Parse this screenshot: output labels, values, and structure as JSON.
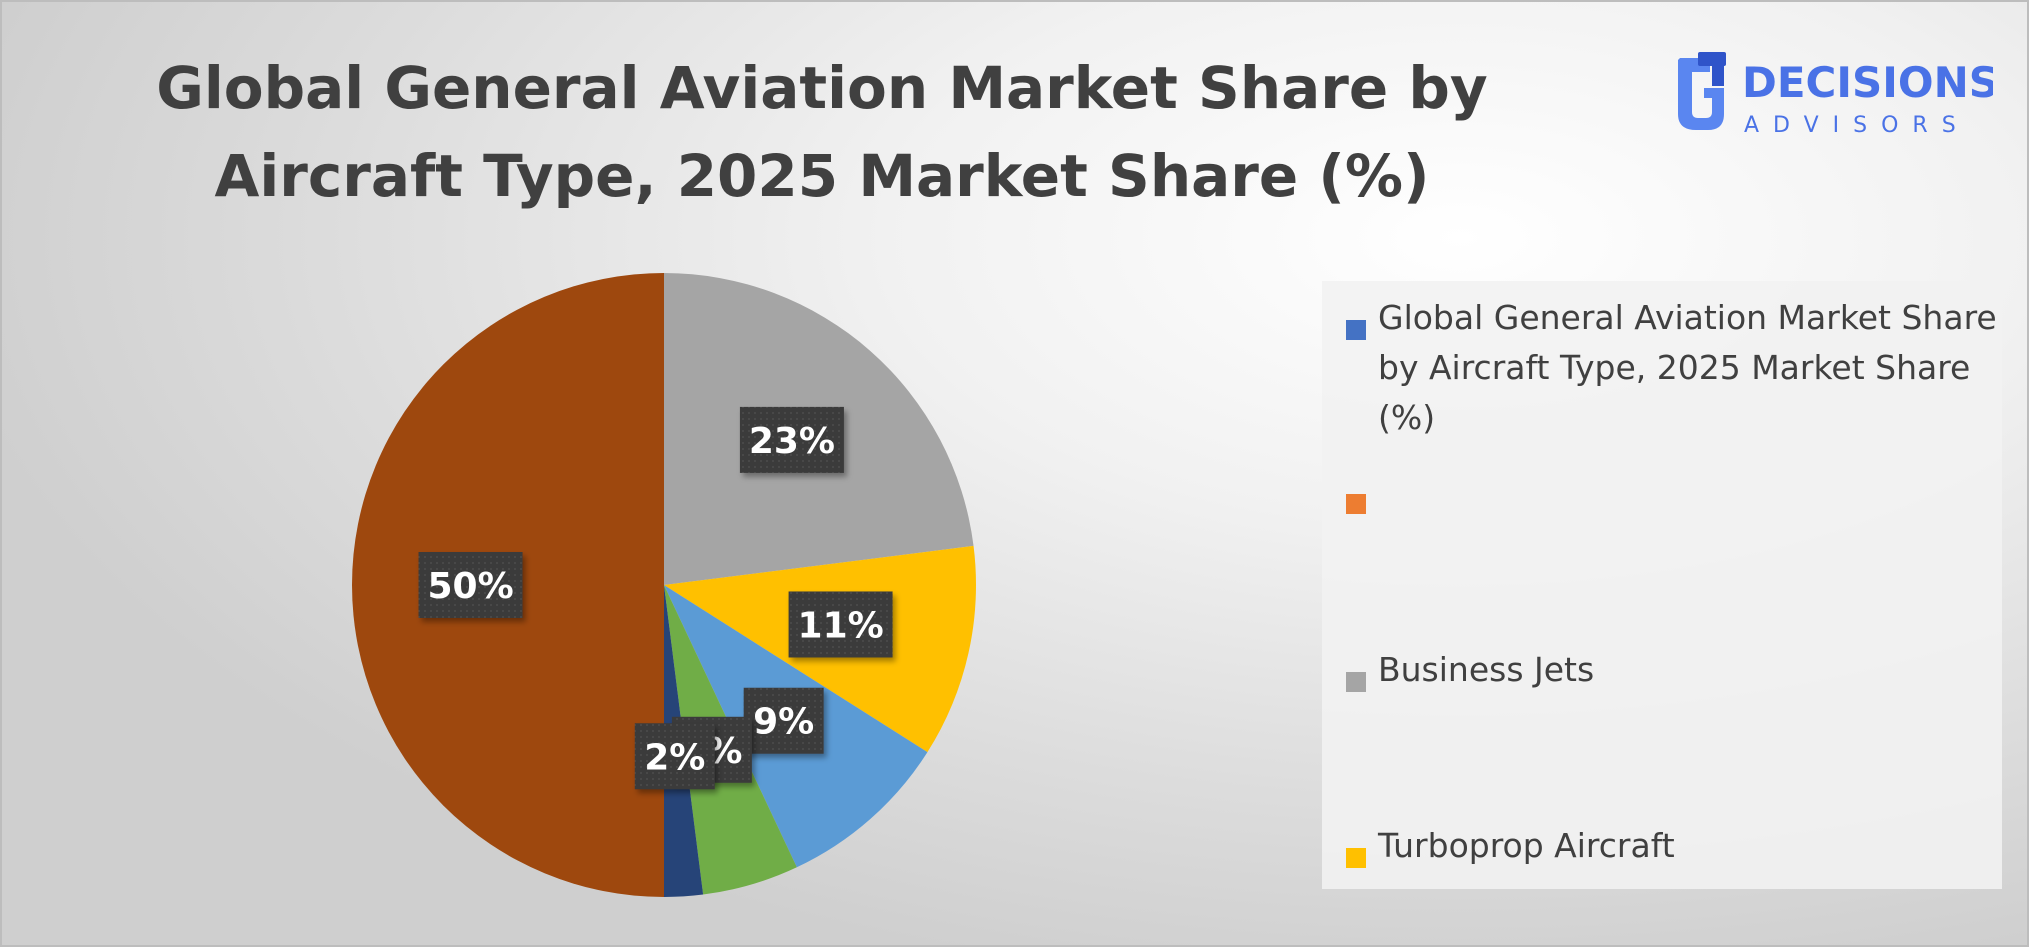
{
  "chart_data": {
    "type": "pie",
    "title": "Global General Aviation Market Share by Aircraft Type, 2025 Market Share (%)",
    "slices": [
      {
        "label": "Business Jets",
        "value": 23,
        "display": "23%",
        "color": "#a5a5a5"
      },
      {
        "label": "Turboprop Aircraft",
        "value": 11,
        "display": "11%",
        "color": "#ffc000"
      },
      {
        "label": "",
        "value": 9,
        "display": "9%",
        "color": "#5b9bd5"
      },
      {
        "label": "",
        "value": 5,
        "display": "5%",
        "color": "#70ad47"
      },
      {
        "label": "",
        "value": 2,
        "display": "2%",
        "color": "#264478"
      },
      {
        "label": "",
        "value": 50,
        "display": "50%",
        "color": "#9e480e"
      }
    ],
    "legend": [
      {
        "label": "Global General Aviation Market Share by Aircraft Type, 2025 Market Share (%)",
        "color": "#4472c4"
      },
      {
        "label": "",
        "color": "#ed7d31"
      },
      {
        "label": "Business Jets",
        "color": "#a5a5a5"
      },
      {
        "label": "Turboprop Aircraft",
        "color": "#ffc000"
      }
    ],
    "legend_position": "right"
  },
  "logo": {
    "word1": "DECISIONS",
    "word2": "ADVISORS",
    "colors": {
      "dark": "#2f54c9",
      "light": "#5a86f0"
    }
  }
}
